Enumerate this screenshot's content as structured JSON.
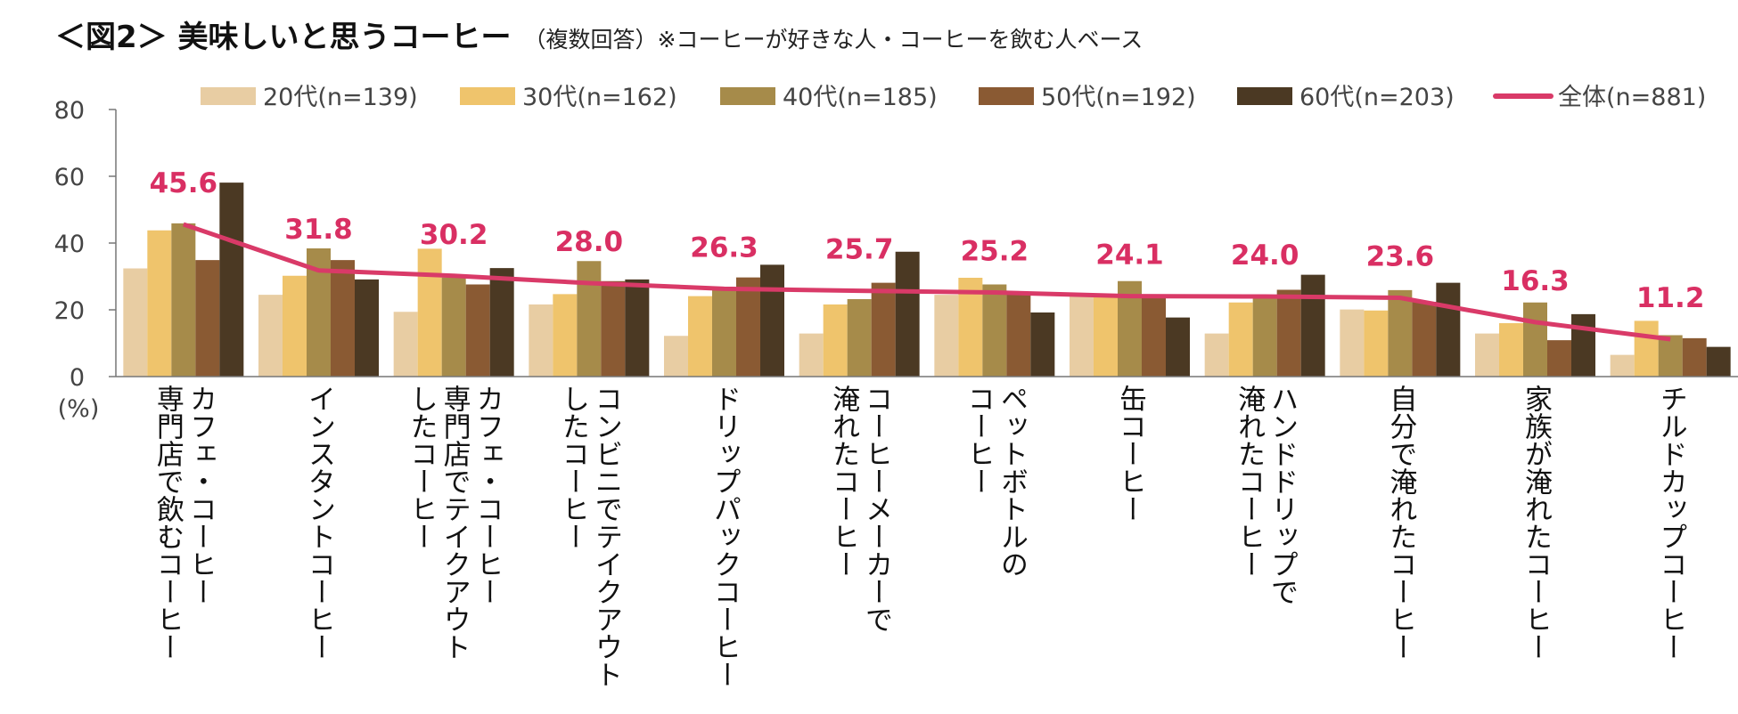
{
  "title": {
    "main": "＜図2＞ 美味しいと思うコーヒー",
    "sub": "（複数回答）",
    "note": "※コーヒーが好きな人・コーヒーを飲む人ベース"
  },
  "chart_data": {
    "type": "bar",
    "unit_label": "(%)",
    "ylim": [
      0,
      80
    ],
    "yticks": [
      "0",
      "20",
      "40",
      "60",
      "80"
    ],
    "categories": [
      "カフェ・コーヒー\n専門店で飲むコーヒー",
      "インスタントコーヒー",
      "カフェ・コーヒー\n専門店でテイクアウト\nしたコーヒー",
      "コンビニでテイクアウト\nしたコーヒー",
      "ドリップパックコーヒー",
      "コーヒーメーカーで\n淹れたコーヒー",
      "ペットボトルの\nコーヒー",
      "缶コーヒー",
      "ハンドドリップで\n淹れたコーヒー",
      "自分で淹れたコーヒー",
      "家族が淹れたコーヒー",
      "チルドカップコーヒー"
    ],
    "series": [
      {
        "name": "20代(n=139)",
        "color": "#e8cda3",
        "values": [
          32.4,
          24.5,
          19.4,
          21.6,
          12.2,
          12.9,
          24.5,
          24.5,
          12.9,
          20.1,
          12.9,
          6.5
        ]
      },
      {
        "name": "30代(n=162)",
        "color": "#efc46c",
        "values": [
          43.8,
          30.2,
          38.3,
          24.7,
          24.1,
          21.6,
          29.6,
          24.1,
          22.2,
          19.8,
          16.0,
          16.7
        ]
      },
      {
        "name": "40代(n=185)",
        "color": "#a68b4a",
        "values": [
          45.9,
          38.4,
          29.7,
          34.6,
          25.9,
          23.2,
          27.6,
          28.6,
          24.3,
          25.9,
          22.2,
          12.4
        ]
      },
      {
        "name": "50代(n=192)",
        "color": "#8a5a33",
        "values": [
          34.9,
          34.9,
          27.6,
          28.6,
          29.7,
          28.1,
          25.0,
          24.0,
          26.0,
          22.4,
          10.9,
          11.5
        ]
      },
      {
        "name": "60代(n=203)",
        "color": "#4b3923",
        "values": [
          58.1,
          29.1,
          32.5,
          29.1,
          33.5,
          37.4,
          19.2,
          17.7,
          30.5,
          28.1,
          18.7,
          8.9
        ]
      }
    ],
    "line": {
      "name": "全体(n=881)",
      "color": "#d93a68",
      "values": [
        45.6,
        31.8,
        30.2,
        28.0,
        26.3,
        25.7,
        25.2,
        24.1,
        24.0,
        23.6,
        16.3,
        11.2
      ]
    },
    "line_labels": [
      "45.6",
      "31.8",
      "30.2",
      "28.0",
      "26.3",
      "25.7",
      "25.2",
      "24.1",
      "24.0",
      "23.6",
      "16.3",
      "11.2"
    ]
  }
}
